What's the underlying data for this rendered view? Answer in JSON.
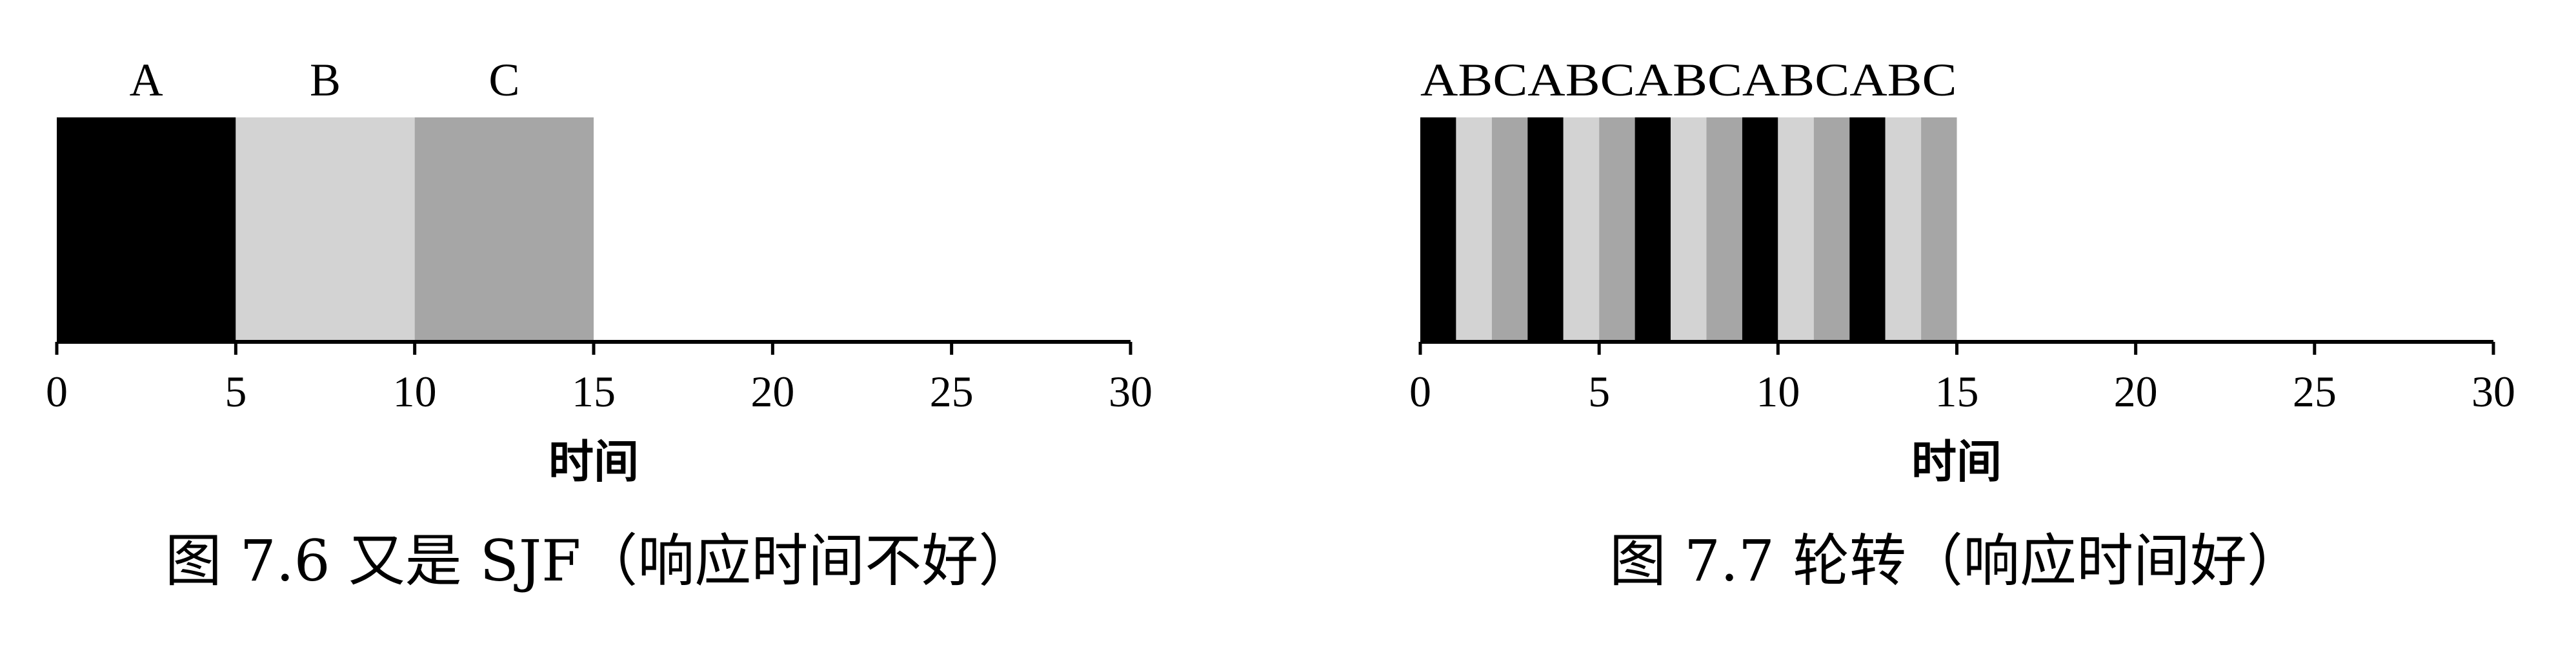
{
  "chart_data": [
    {
      "type": "bar",
      "caption": "图 7.6    又是 SJF（响应时间不好）",
      "xlabel": "时间",
      "xlim": [
        0,
        30
      ],
      "xticks": [
        0,
        5,
        10,
        15,
        20,
        25,
        30
      ],
      "series": [
        {
          "name": "A",
          "color": "#000000"
        },
        {
          "name": "B",
          "color": "#d3d3d3"
        },
        {
          "name": "C",
          "color": "#a6a6a6"
        }
      ],
      "segments": [
        {
          "job": "A",
          "start": 0,
          "end": 5
        },
        {
          "job": "B",
          "start": 5,
          "end": 10
        },
        {
          "job": "C",
          "start": 10,
          "end": 15
        }
      ],
      "top_labels": [
        "A",
        "B",
        "C"
      ]
    },
    {
      "type": "bar",
      "caption": "图 7.7    轮转（响应时间好）",
      "xlabel": "时间",
      "xlim": [
        0,
        30
      ],
      "xticks": [
        0,
        5,
        10,
        15,
        20,
        25,
        30
      ],
      "series": [
        {
          "name": "A",
          "color": "#000000"
        },
        {
          "name": "B",
          "color": "#d3d3d3"
        },
        {
          "name": "C",
          "color": "#a6a6a6"
        }
      ],
      "segments": [
        {
          "job": "A",
          "start": 0,
          "end": 1
        },
        {
          "job": "B",
          "start": 1,
          "end": 2
        },
        {
          "job": "C",
          "start": 2,
          "end": 3
        },
        {
          "job": "A",
          "start": 3,
          "end": 4
        },
        {
          "job": "B",
          "start": 4,
          "end": 5
        },
        {
          "job": "C",
          "start": 5,
          "end": 6
        },
        {
          "job": "A",
          "start": 6,
          "end": 7
        },
        {
          "job": "B",
          "start": 7,
          "end": 8
        },
        {
          "job": "C",
          "start": 8,
          "end": 9
        },
        {
          "job": "A",
          "start": 9,
          "end": 10
        },
        {
          "job": "B",
          "start": 10,
          "end": 11
        },
        {
          "job": "C",
          "start": 11,
          "end": 12
        },
        {
          "job": "A",
          "start": 12,
          "end": 13
        },
        {
          "job": "B",
          "start": 13,
          "end": 14
        },
        {
          "job": "C",
          "start": 14,
          "end": 15
        }
      ],
      "top_labels": [
        "ABCABCABCABCABC"
      ]
    }
  ]
}
